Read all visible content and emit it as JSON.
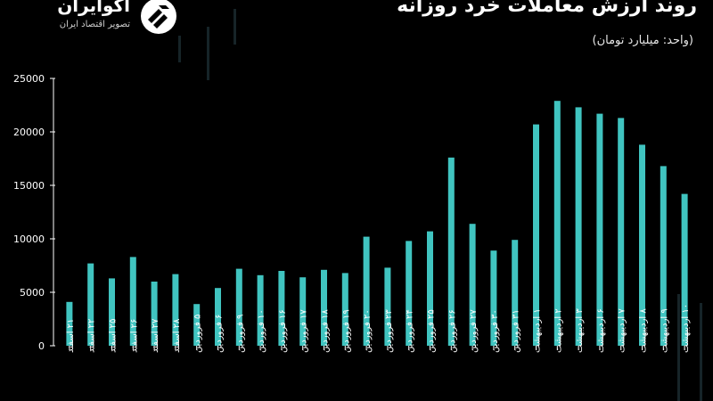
{
  "chart_data": {
    "type": "bar",
    "title": "روند ارزش معاملات خرد روزانه",
    "subtitle": "(واحد: میلیارد تومان)",
    "xlabel": "",
    "ylabel": "",
    "ylim": [
      0,
      25000
    ],
    "yticks": [
      "25000",
      "20000",
      "15000",
      "10000",
      "5000",
      "0"
    ],
    "ytick_values": [
      25000,
      20000,
      15000,
      10000,
      5000,
      0
    ],
    "grid": false,
    "categories": [
      "۲۱ اسفند",
      "۲۲ اسفند",
      "۲۵ اسفند",
      "۲۶ اسفند",
      "۲۷ اسفند",
      "۲۸ اسفند",
      "۵ فروردین",
      "۶ فروردین",
      "۹ فروردین",
      "۱۰ فروردین",
      "۱۶ فروردین",
      "۱۷ فروردین",
      "۱۸ فروردین",
      "۱۹ فروردین",
      "۲۰ فروردین",
      "۲۳ فروردین",
      "۲۴ فروردین",
      "۲۵ فروردین",
      "۲۶ فروردین",
      "۲۷ فروردین",
      "۳۰ فروردین",
      "۳۱ فروردین",
      "۱ اردیبهشت",
      "۲ اردیبهشت",
      "۳ اردیبهشت",
      "۶ اردیبهشت",
      "۷ اردیبهشت",
      "۸ اردیبهشت",
      "۹ اردیبهشت",
      "۱۰ اردیبهشت"
    ],
    "values": [
      4100,
      7700,
      6300,
      8300,
      6000,
      6700,
      3900,
      5400,
      7200,
      6600,
      7000,
      6400,
      7100,
      6800,
      10200,
      7300,
      9800,
      10700,
      17600,
      11400,
      8900,
      9900,
      20700,
      22900,
      22300,
      21700,
      21300,
      18800,
      16800,
      14200
    ],
    "bar_color": "#40c4c0"
  },
  "brand": {
    "name": "اکوایران",
    "tagline": "تصویر اقتصاد ایران"
  },
  "colors": {
    "background": "#000000",
    "bar": "#40c4c0",
    "axis": "#ffffff"
  }
}
